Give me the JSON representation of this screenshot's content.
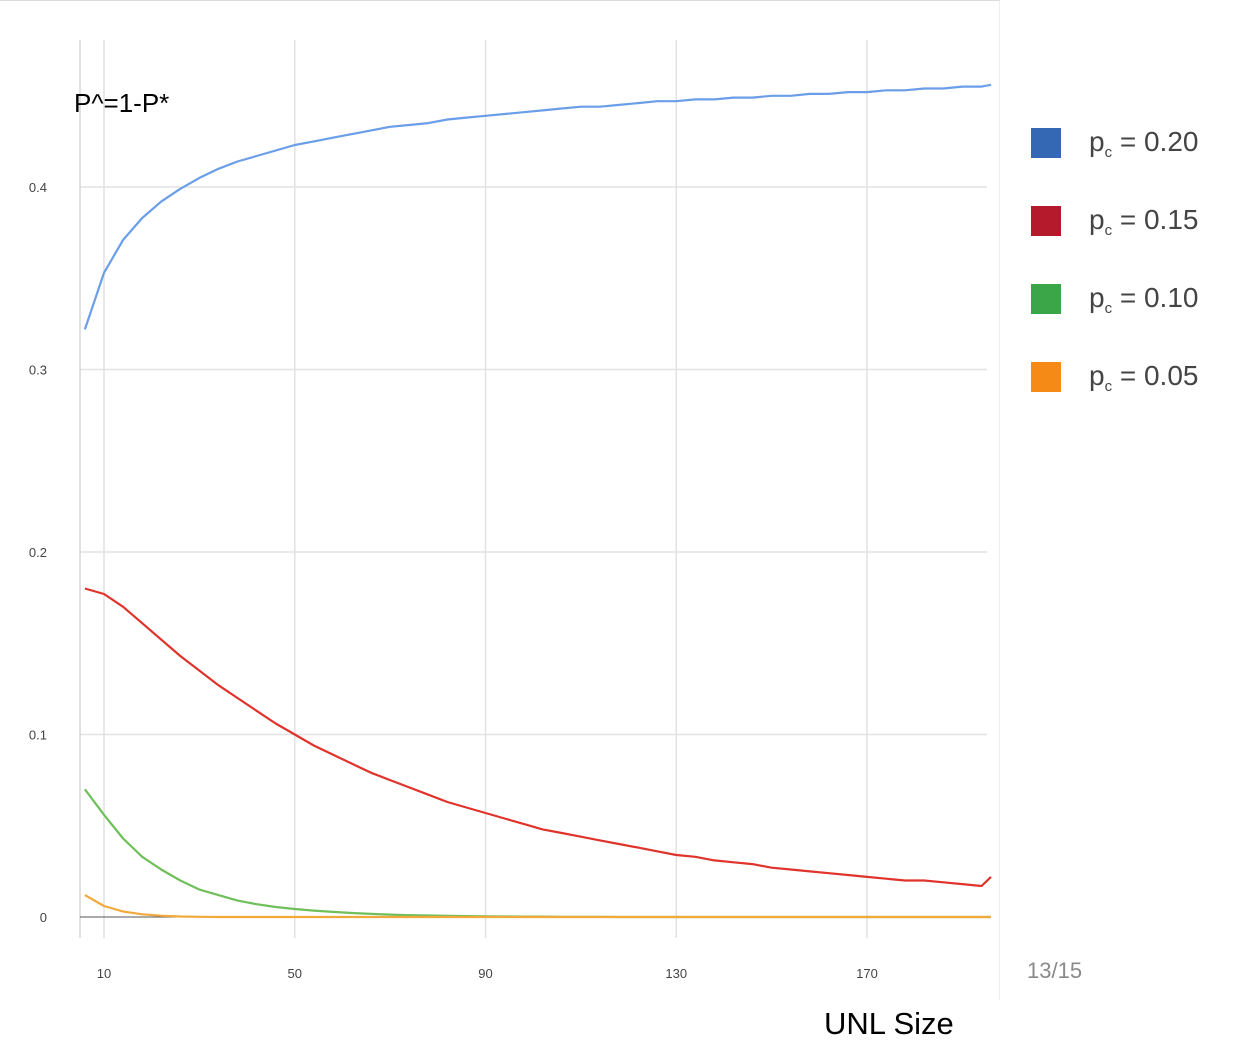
{
  "chart_data": {
    "type": "line",
    "title": "P^=1-P*",
    "xlabel": "UNL Size",
    "ylabel": "",
    "xlim": [
      6,
      196
    ],
    "ylim": [
      0,
      0.46
    ],
    "x_ticks": [
      10,
      50,
      90,
      130,
      170
    ],
    "y_ticks": [
      {
        "value": 0,
        "label": "0"
      },
      {
        "value": 0.1,
        "label": "0.1"
      },
      {
        "value": 0.2,
        "label": "0.2"
      },
      {
        "value": 0.3,
        "label": "0.3"
      },
      {
        "value": 0.4,
        "label": "0.4"
      }
    ],
    "grid": true,
    "legend_position": "right",
    "x": [
      6,
      10,
      14,
      18,
      22,
      26,
      30,
      34,
      38,
      42,
      46,
      50,
      54,
      58,
      62,
      66,
      70,
      74,
      78,
      82,
      86,
      90,
      94,
      98,
      102,
      106,
      110,
      114,
      118,
      122,
      126,
      130,
      134,
      138,
      142,
      146,
      150,
      154,
      158,
      162,
      166,
      170,
      174,
      178,
      182,
      186,
      190,
      194,
      196
    ],
    "series": [
      {
        "name": "p_c = 0.20",
        "label_main": "p",
        "label_sub": "c",
        "label_rest": " = 0.20",
        "color": "#6a9ee8",
        "swatch": "#3468b5",
        "values": [
          0.322,
          0.353,
          0.371,
          0.383,
          0.392,
          0.399,
          0.405,
          0.41,
          0.414,
          0.417,
          0.42,
          0.423,
          0.425,
          0.427,
          0.429,
          0.431,
          0.433,
          0.434,
          0.435,
          0.437,
          0.438,
          0.439,
          0.44,
          0.441,
          0.442,
          0.443,
          0.444,
          0.444,
          0.445,
          0.446,
          0.447,
          0.447,
          0.448,
          0.448,
          0.449,
          0.449,
          0.45,
          0.45,
          0.451,
          0.451,
          0.452,
          0.452,
          0.453,
          0.453,
          0.454,
          0.454,
          0.455,
          0.455,
          0.456
        ]
      },
      {
        "name": "p_c = 0.15",
        "label_main": "p",
        "label_sub": "c",
        "label_rest": " = 0.15",
        "color": "#e0332b",
        "swatch": "#b5192c",
        "values": [
          0.18,
          0.177,
          0.17,
          0.161,
          0.152,
          0.143,
          0.135,
          0.127,
          0.12,
          0.113,
          0.106,
          0.1,
          0.094,
          0.089,
          0.084,
          0.079,
          0.075,
          0.071,
          0.067,
          0.063,
          0.06,
          0.057,
          0.054,
          0.051,
          0.048,
          0.046,
          0.044,
          0.042,
          0.04,
          0.038,
          0.036,
          0.034,
          0.033,
          0.031,
          0.03,
          0.029,
          0.027,
          0.026,
          0.025,
          0.024,
          0.023,
          0.022,
          0.021,
          0.02,
          0.02,
          0.019,
          0.018,
          0.017,
          0.022
        ]
      },
      {
        "name": "p_c = 0.10",
        "label_main": "p",
        "label_sub": "c",
        "label_rest": " = 0.10",
        "color": "#6fbf5a",
        "swatch": "#3aa648",
        "values": [
          0.07,
          0.056,
          0.043,
          0.033,
          0.026,
          0.02,
          0.015,
          0.012,
          0.009,
          0.007,
          0.0055,
          0.0044,
          0.0035,
          0.0028,
          0.0022,
          0.0017,
          0.0013,
          0.001,
          0.0008,
          0.0006,
          0.0005,
          0.0004,
          0.0003,
          0.0002,
          0.0002,
          0.0001,
          0.0001,
          0.0001,
          0,
          0,
          0,
          0,
          0,
          0,
          0,
          0,
          0,
          0,
          0,
          0,
          0,
          0,
          0,
          0,
          0,
          0,
          0,
          0,
          0
        ]
      },
      {
        "name": "p_c = 0.05",
        "label_main": "p",
        "label_sub": "c",
        "label_rest": " = 0.05",
        "color": "#f2a93b",
        "swatch": "#f58a16",
        "values": [
          0.012,
          0.006,
          0.003,
          0.0015,
          0.0007,
          0.0003,
          0.0001,
          0,
          0,
          0,
          0,
          0,
          0,
          0,
          0,
          0,
          0,
          0,
          0,
          0,
          0,
          0,
          0,
          0,
          0,
          0,
          0,
          0,
          0,
          0,
          0,
          0,
          0,
          0,
          0,
          0,
          0,
          0,
          0,
          0,
          0,
          0,
          0,
          0,
          0,
          0,
          0,
          0,
          0
        ]
      }
    ]
  },
  "page_number": "13/15"
}
